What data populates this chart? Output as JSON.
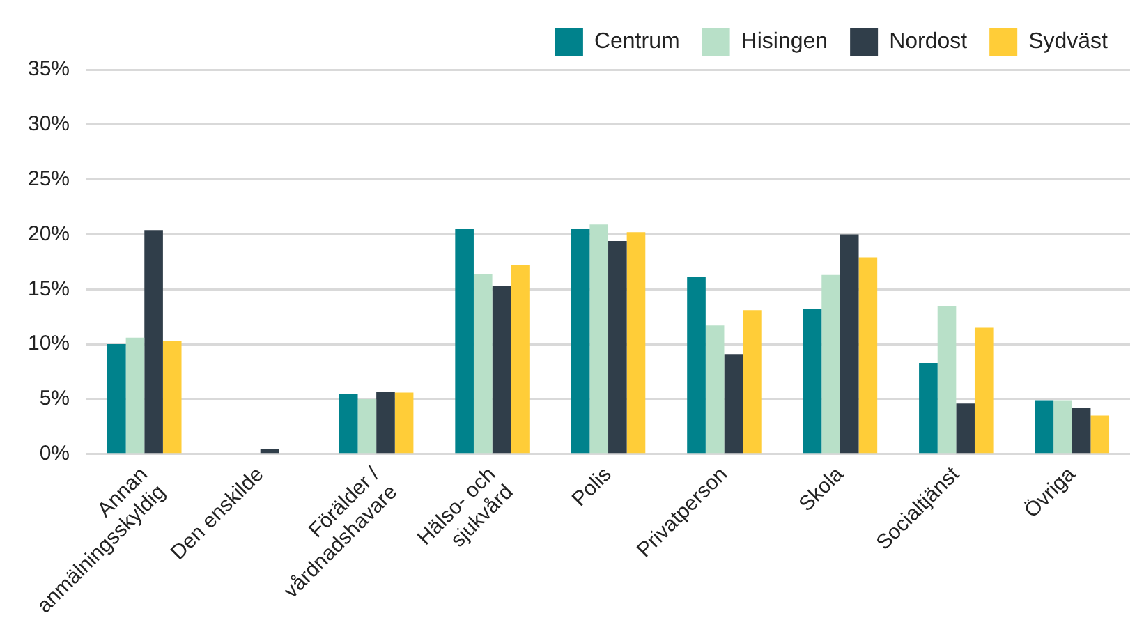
{
  "chart_data": {
    "type": "bar",
    "categories": [
      "Annan anmälningsskyldig",
      "Den enskilde",
      "Förälder / vårdnadshavare",
      "Hälso- och sjukvård",
      "Polis",
      "Privatperson",
      "Skola",
      "Socialtjänst",
      "Övriga"
    ],
    "series": [
      {
        "name": "Centrum",
        "color": "#00828c",
        "values": [
          10.0,
          0,
          5.5,
          20.5,
          20.5,
          16.1,
          13.2,
          8.3,
          4.9
        ]
      },
      {
        "name": "Hisingen",
        "color": "#b8e0c8",
        "values": [
          10.6,
          0,
          5.0,
          16.4,
          20.9,
          11.7,
          16.3,
          13.5,
          4.9
        ]
      },
      {
        "name": "Nordost",
        "color": "#303e4a",
        "values": [
          20.4,
          0.5,
          5.7,
          15.3,
          19.4,
          9.1,
          20.0,
          4.6,
          4.2
        ]
      },
      {
        "name": "Sydväst",
        "color": "#ffcd38",
        "values": [
          10.3,
          0,
          5.6,
          17.2,
          20.2,
          13.1,
          17.9,
          11.5,
          3.5
        ]
      }
    ],
    "ylim": [
      0,
      35
    ],
    "yticks": [
      {
        "value": 0,
        "label": "0%"
      },
      {
        "value": 5,
        "label": "5%"
      },
      {
        "value": 10,
        "label": "10%"
      },
      {
        "value": 15,
        "label": "15%"
      },
      {
        "value": 20,
        "label": "20%"
      },
      {
        "value": 25,
        "label": "25%"
      },
      {
        "value": 30,
        "label": "30%"
      },
      {
        "value": 35,
        "label": "35%"
      }
    ],
    "grid": "y",
    "legend": "top right"
  }
}
